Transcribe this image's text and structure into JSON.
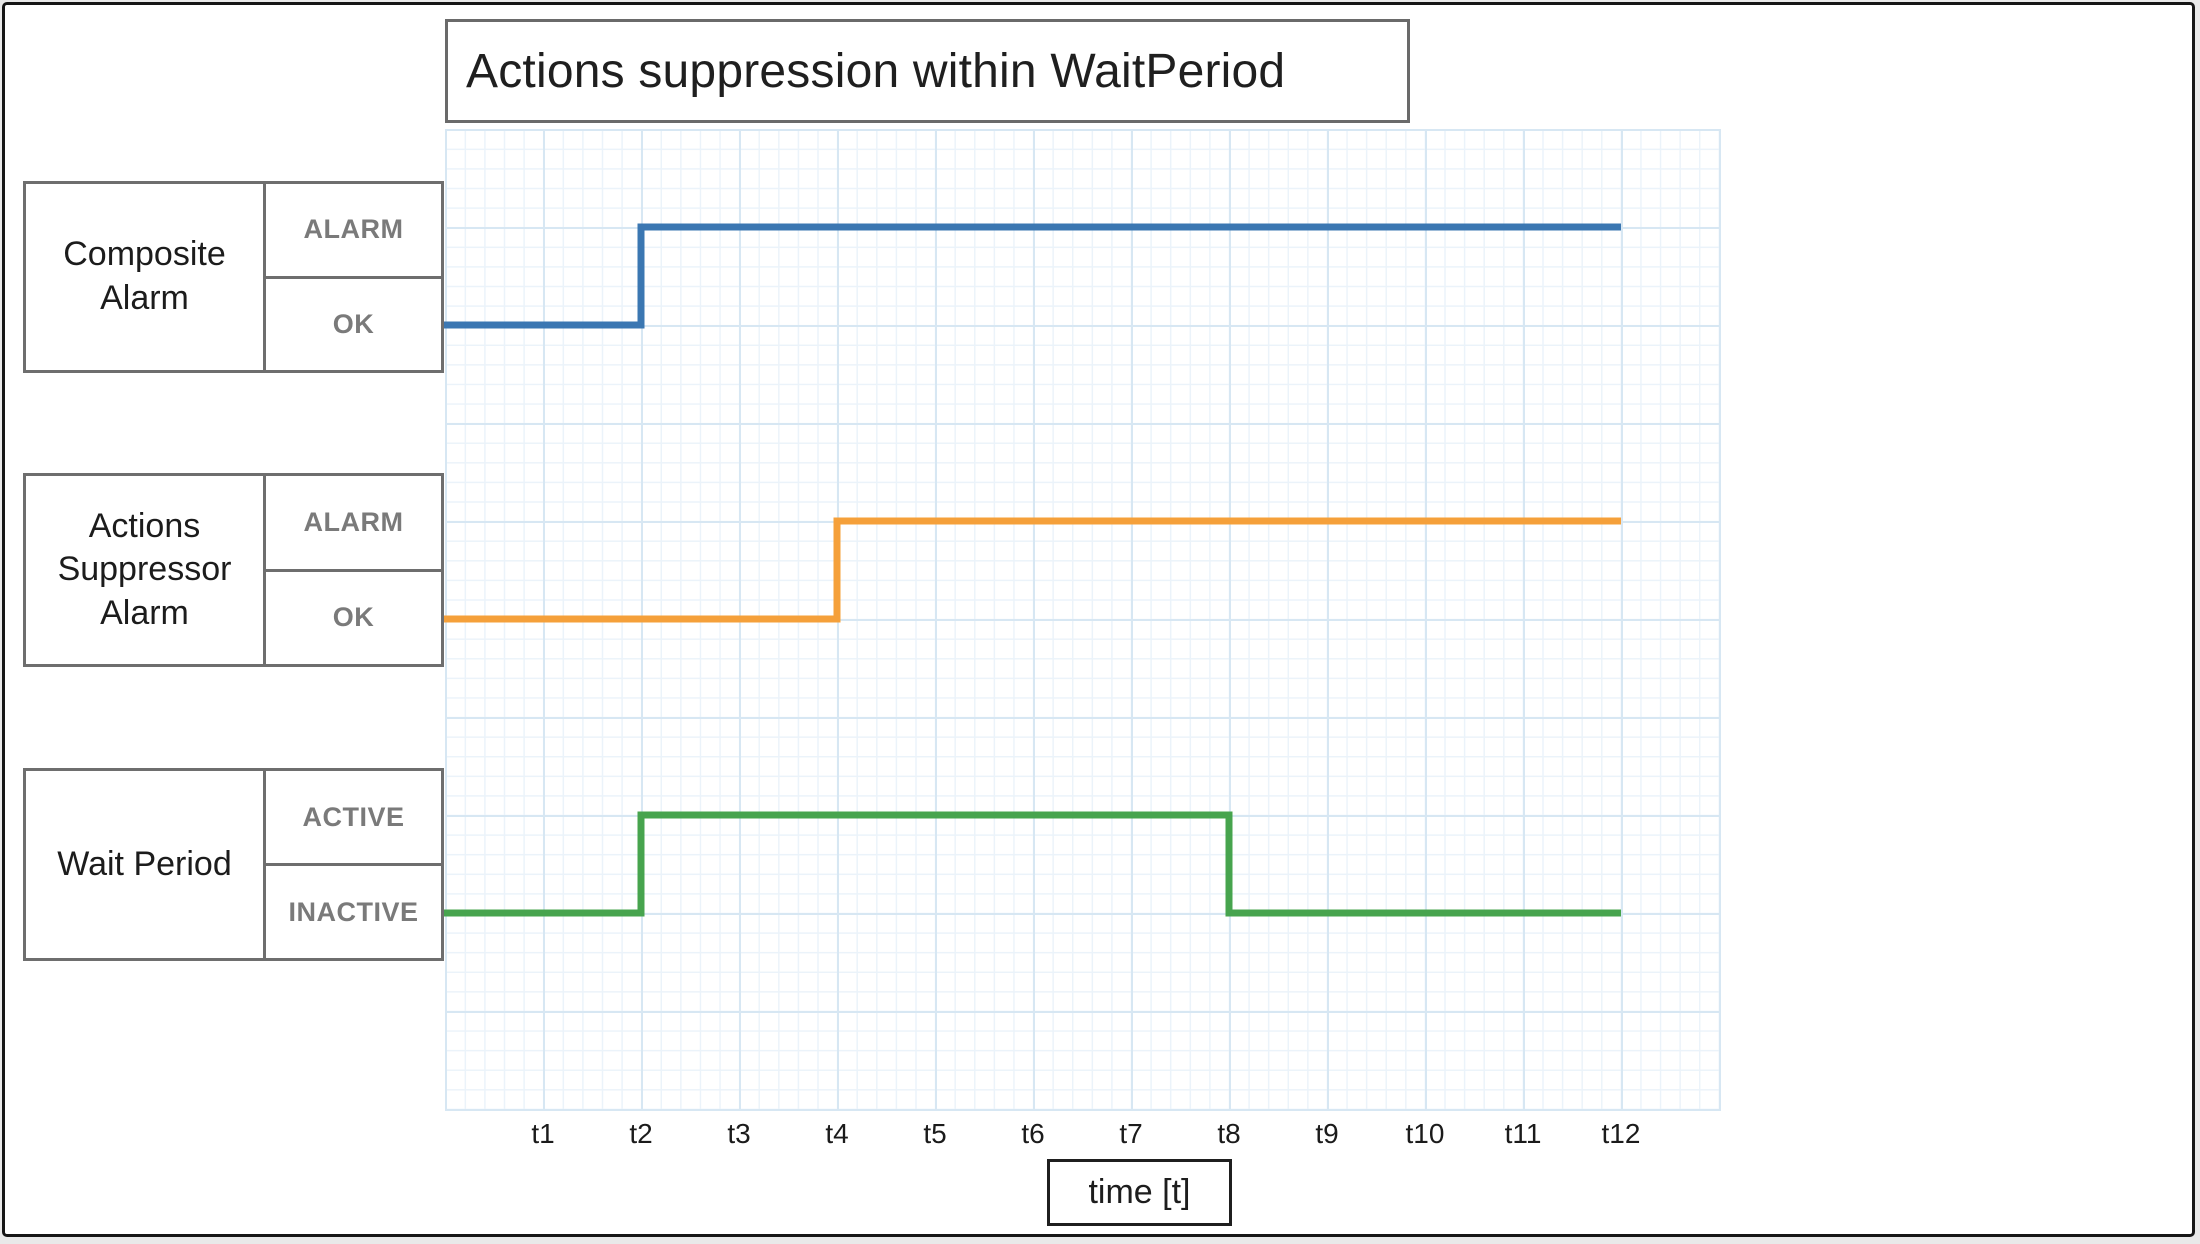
{
  "title": "Actions suppression within WaitPeriod",
  "panels": [
    {
      "label": "Composite Alarm",
      "states": [
        "ALARM",
        "OK"
      ]
    },
    {
      "label": "Actions Suppressor Alarm",
      "states": [
        "ALARM",
        "OK"
      ]
    },
    {
      "label": "Wait Period",
      "states": [
        "ACTIVE",
        "INACTIVE"
      ]
    }
  ],
  "x_axis": {
    "ticks": [
      "t1",
      "t2",
      "t3",
      "t4",
      "t5",
      "t6",
      "t7",
      "t8",
      "t9",
      "t10",
      "t11",
      "t12"
    ],
    "label": "time [t]"
  },
  "colors": {
    "composite_alarm_line": "#3b77b2",
    "actions_suppressor_line": "#f5a03a",
    "wait_period_line": "#47a44e",
    "grid_minor": "#ebf3fa",
    "grid_major": "#d7e7f3",
    "box_border": "#6e6e6e",
    "state_text": "#7a7a7a",
    "label_text": "#1c1c1c"
  },
  "chart_data": {
    "type": "line",
    "subtype": "step-signal-timing",
    "title": "Actions suppression within WaitPeriod",
    "x_ticks": [
      "t1",
      "t2",
      "t3",
      "t4",
      "t5",
      "t6",
      "t7",
      "t8",
      "t9",
      "t10",
      "t11",
      "t12"
    ],
    "xlabel": "time [t]",
    "grid": true,
    "series": [
      {
        "name": "Composite Alarm",
        "color": "#3b77b2",
        "states": [
          "ALARM",
          "OK"
        ],
        "initial": "OK",
        "transitions": [
          {
            "at": "t2",
            "to": "ALARM"
          }
        ],
        "final": "ALARM"
      },
      {
        "name": "Actions Suppressor Alarm",
        "color": "#f5a03a",
        "states": [
          "ALARM",
          "OK"
        ],
        "initial": "OK",
        "transitions": [
          {
            "at": "t4",
            "to": "ALARM"
          }
        ],
        "final": "ALARM"
      },
      {
        "name": "Wait Period",
        "color": "#47a44e",
        "states": [
          "ACTIVE",
          "INACTIVE"
        ],
        "initial": "INACTIVE",
        "transitions": [
          {
            "at": "t2",
            "to": "ACTIVE"
          },
          {
            "at": "t8",
            "to": "INACTIVE"
          }
        ],
        "final": "INACTIVE"
      }
    ]
  }
}
